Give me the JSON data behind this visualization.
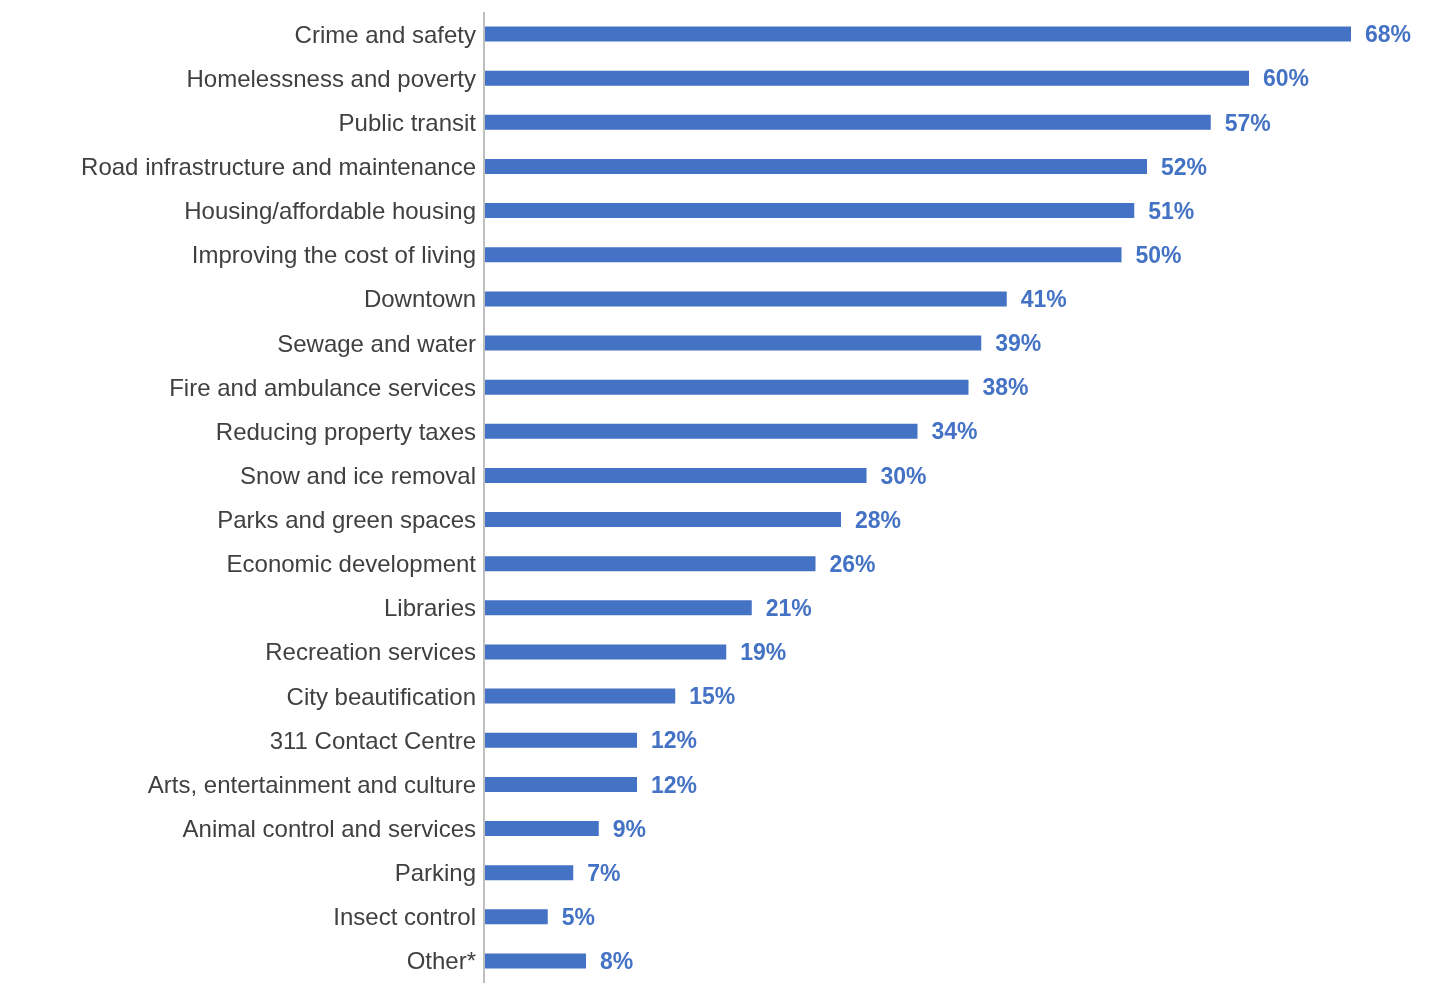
{
  "chart_data": {
    "type": "bar",
    "orientation": "horizontal",
    "categories": [
      "Crime and safety",
      "Homelessness and poverty",
      "Public transit",
      "Road infrastructure and maintenance",
      "Housing/affordable housing",
      "Improving the cost of living",
      "Downtown",
      "Sewage and water",
      "Fire and ambulance services",
      "Reducing property taxes",
      "Snow and ice removal",
      "Parks and green spaces",
      "Economic development",
      "Libraries",
      "Recreation services",
      "City beautification",
      "311 Contact Centre",
      "Arts, entertainment and culture",
      "Animal control and services",
      "Parking",
      "Insect control",
      "Other*"
    ],
    "values": [
      68,
      60,
      57,
      52,
      51,
      50,
      41,
      39,
      38,
      34,
      30,
      28,
      26,
      21,
      19,
      15,
      12,
      12,
      9,
      7,
      5,
      8
    ],
    "value_labels": [
      "68%",
      "60%",
      "57%",
      "52%",
      "51%",
      "50%",
      "41%",
      "39%",
      "38%",
      "34%",
      "30%",
      "28%",
      "26%",
      "21%",
      "19%",
      "15%",
      "12%",
      "12%",
      "9%",
      "7%",
      "5%",
      "8%"
    ],
    "color": "#4472c4",
    "grid": false,
    "legend": false
  }
}
